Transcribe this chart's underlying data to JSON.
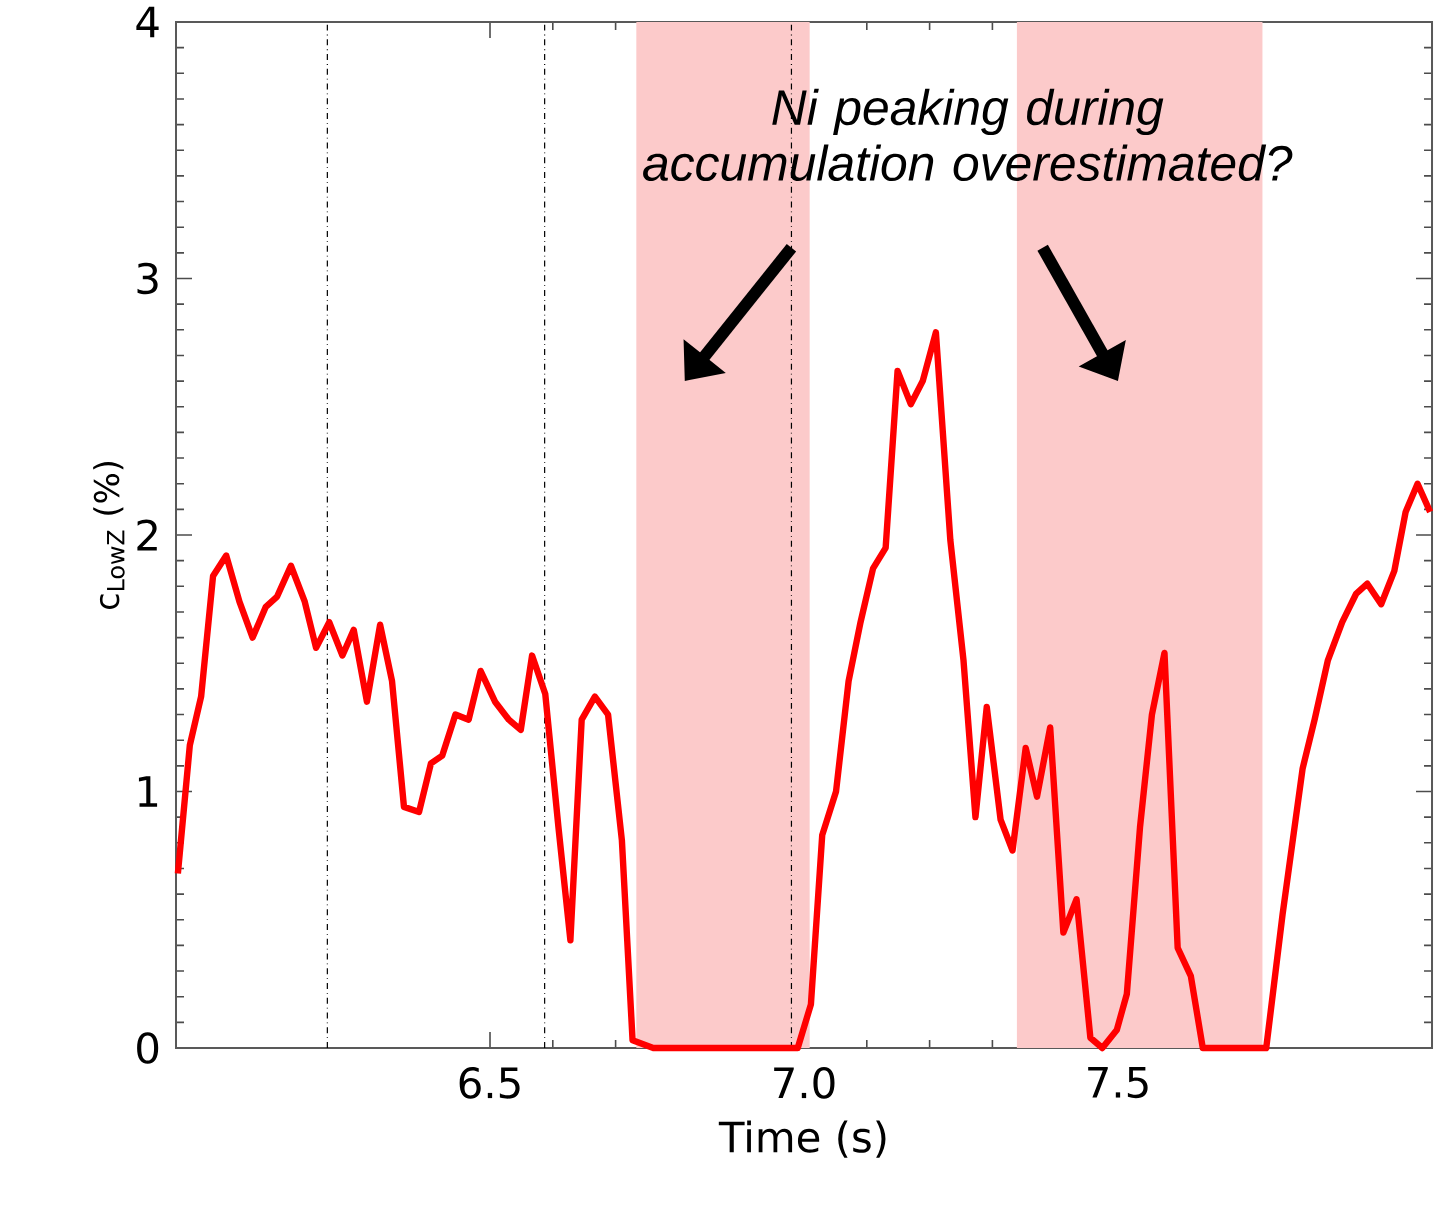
{
  "chart_data": {
    "type": "line",
    "xlabel": "Time (s)",
    "ylabel": "c$_{LowZ}$ (%)",
    "annotations": [
      "Ni peaking during accumulation overestimated?"
    ],
    "xlim": [
      6.0,
      8.0
    ],
    "ylim": [
      0,
      4
    ],
    "xticks": [
      6.5,
      {
        "value": 7.0,
        "label": "7.0"
      },
      7.5
    ],
    "yticks": [
      0,
      1,
      2,
      3,
      4
    ],
    "ref_lines": [
      {
        "axis": "x",
        "value": 6.241,
        "color": "#000000"
      },
      {
        "axis": "x",
        "value": 6.587,
        "color": "#000000"
      },
      {
        "axis": "x",
        "value": 6.98,
        "color": "#000000"
      }
    ],
    "bands": [
      {
        "axis": "x",
        "from": 6.733,
        "to": 7.009,
        "color": "#fccaca"
      },
      {
        "axis": "x",
        "from": 7.339,
        "to": 7.73,
        "color": "#fccaca"
      }
    ],
    "series": [
      {
        "color": "#ff0000",
        "x": [
          6.003,
          6.022,
          6.04,
          6.059,
          6.08,
          6.101,
          6.122,
          6.143,
          6.161,
          6.183,
          6.205,
          6.223,
          6.244,
          6.265,
          6.283,
          6.304,
          6.325,
          6.344,
          6.363,
          6.387,
          6.406,
          6.424,
          6.445,
          6.466,
          6.485,
          6.508,
          6.53,
          6.549,
          6.567,
          6.588,
          6.609,
          6.628,
          6.646,
          6.667,
          6.688,
          6.71,
          6.727,
          6.76,
          6.83,
          6.9,
          6.99,
          7.011,
          7.029,
          7.051,
          7.071,
          7.09,
          7.11,
          7.13,
          7.149,
          7.17,
          7.189,
          7.21,
          7.233,
          7.254,
          7.273,
          7.291,
          7.313,
          7.332,
          7.353,
          7.371,
          7.392,
          7.413,
          7.434,
          7.456,
          7.475,
          7.498,
          7.514,
          7.535,
          7.554,
          7.574,
          7.595,
          7.616,
          7.635,
          7.736,
          7.762,
          7.794,
          7.813,
          7.834,
          7.857,
          7.879,
          7.897,
          7.919,
          7.94,
          7.958,
          7.977,
          7.997
        ],
        "values": [
          0.68,
          1.18,
          1.37,
          1.84,
          1.92,
          1.74,
          1.6,
          1.72,
          1.76,
          1.88,
          1.74,
          1.56,
          1.66,
          1.53,
          1.63,
          1.35,
          1.65,
          1.43,
          0.94,
          0.92,
          1.11,
          1.14,
          1.3,
          1.28,
          1.47,
          1.35,
          1.28,
          1.24,
          1.53,
          1.38,
          0.86,
          0.42,
          1.28,
          1.37,
          1.3,
          0.81,
          0.03,
          0,
          0,
          0,
          0,
          0.17,
          0.83,
          1.0,
          1.43,
          1.66,
          1.87,
          1.95,
          2.64,
          2.51,
          2.6,
          2.79,
          1.98,
          1.51,
          0.9,
          1.33,
          0.89,
          0.77,
          1.17,
          0.98,
          1.25,
          0.45,
          0.58,
          0.04,
          0,
          0.07,
          0.21,
          0.86,
          1.3,
          1.54,
          0.39,
          0.28,
          0,
          0,
          0.52,
          1.09,
          1.28,
          1.51,
          1.66,
          1.77,
          1.81,
          1.73,
          1.86,
          2.09,
          2.2,
          2.09
        ]
      }
    ]
  }
}
